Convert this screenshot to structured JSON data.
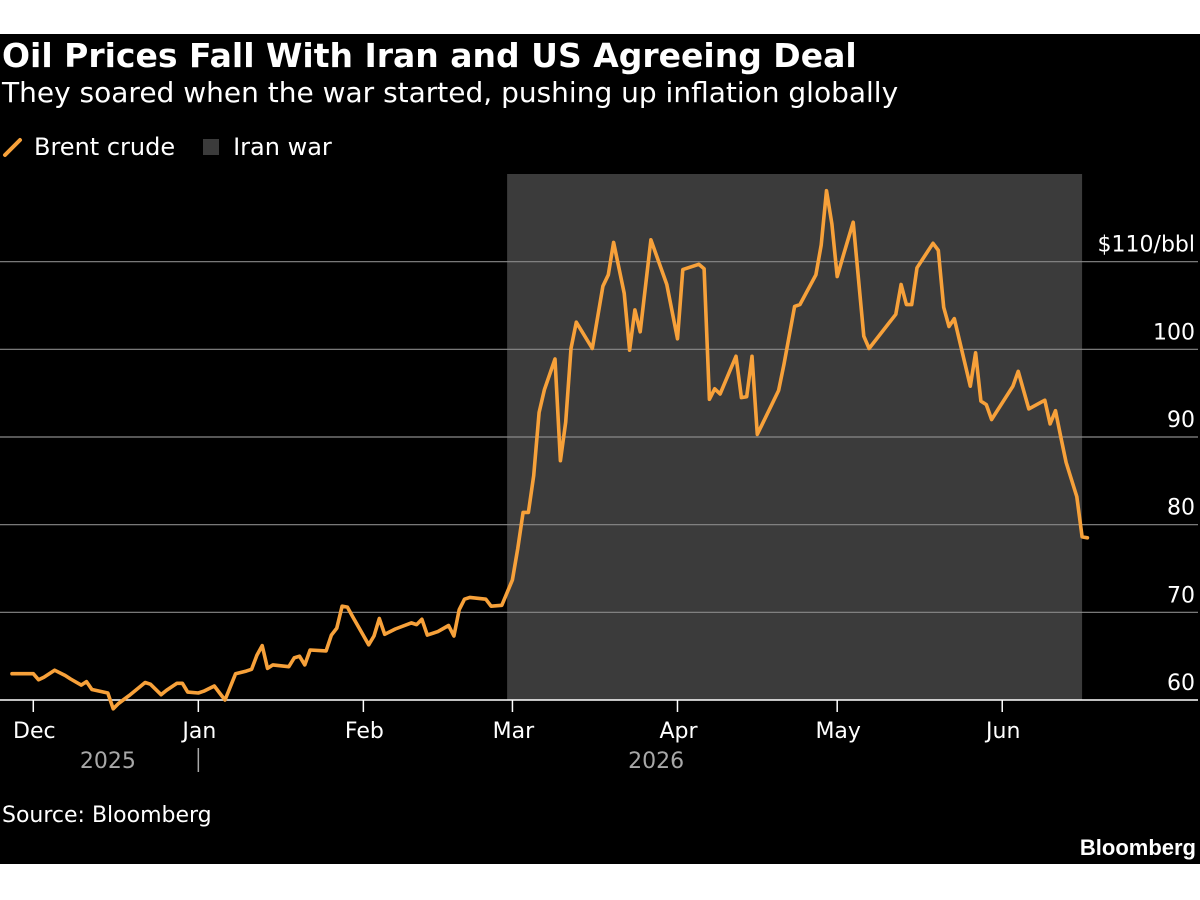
{
  "header": {
    "title": "Oil Prices Fall With Iran and US Agreeing Deal",
    "subtitle": "They soared when the war started, pushing up inflation globally"
  },
  "legend": {
    "series_label": "Brent crude",
    "shade_label": "Iran war"
  },
  "footer": {
    "source": "Source: Bloomberg",
    "brand": "Bloomberg"
  },
  "colors": {
    "background": "#000000",
    "line": "#f7a13a",
    "shade": "#3b3b3b",
    "grid": "#8a8a8a",
    "text": "#ffffff",
    "year_text": "#a8a8a8"
  },
  "chart_data": {
    "type": "line",
    "title": "Oil Prices Fall With Iran and US Agreeing Deal",
    "subtitle": "They soared when the war started, pushing up inflation globally",
    "xlabel": "",
    "ylabel": "",
    "xlim": [
      "2025-11-27",
      "2026-06-25"
    ],
    "ylim": [
      60,
      120
    ],
    "yticks": [
      {
        "value": 60,
        "label": "60"
      },
      {
        "value": 70,
        "label": "70"
      },
      {
        "value": 80,
        "label": "80"
      },
      {
        "value": 90,
        "label": "90"
      },
      {
        "value": 100,
        "label": "100"
      },
      {
        "value": 110,
        "label": "$110/bbl"
      }
    ],
    "xticks": [
      {
        "date": "2025-12-01",
        "label": "Dec"
      },
      {
        "date": "2026-01-01",
        "label": "Jan"
      },
      {
        "date": "2026-02-01",
        "label": "Feb"
      },
      {
        "date": "2026-03-01",
        "label": "Mar"
      },
      {
        "date": "2026-04-01",
        "label": "Apr"
      },
      {
        "date": "2026-05-01",
        "label": "May"
      },
      {
        "date": "2026-06-01",
        "label": "Jun"
      }
    ],
    "year_labels": [
      {
        "label": "2025",
        "date": "2025-12-15"
      },
      {
        "label": "2026",
        "date": "2026-03-28"
      }
    ],
    "grid": true,
    "legend_position": "top-left",
    "shaded_region": {
      "label": "Iran war",
      "start": "2026-02-28",
      "end": "2026-06-16"
    },
    "series": [
      {
        "name": "Brent crude",
        "points": [
          [
            "2025-11-27",
            63.0
          ],
          [
            "2025-11-29",
            63.0
          ],
          [
            "2025-12-01",
            63.0
          ],
          [
            "2025-12-02",
            62.3
          ],
          [
            "2025-12-03",
            62.6
          ],
          [
            "2025-12-05",
            63.4
          ],
          [
            "2025-12-07",
            62.8
          ],
          [
            "2025-12-08",
            62.4
          ],
          [
            "2025-12-10",
            61.7
          ],
          [
            "2025-12-11",
            62.1
          ],
          [
            "2025-12-12",
            61.2
          ],
          [
            "2025-12-15",
            60.8
          ],
          [
            "2025-12-16",
            59.0
          ],
          [
            "2025-12-17",
            59.6
          ],
          [
            "2025-12-19",
            60.5
          ],
          [
            "2025-12-21",
            61.5
          ],
          [
            "2025-12-22",
            62.0
          ],
          [
            "2025-12-23",
            61.8
          ],
          [
            "2025-12-25",
            60.6
          ],
          [
            "2025-12-26",
            61.1
          ],
          [
            "2025-12-28",
            61.9
          ],
          [
            "2025-12-29",
            61.9
          ],
          [
            "2025-12-30",
            60.9
          ],
          [
            "2026-01-01",
            60.8
          ],
          [
            "2026-01-02",
            61.0
          ],
          [
            "2026-01-04",
            61.6
          ],
          [
            "2026-01-05",
            60.8
          ],
          [
            "2026-01-06",
            60.0
          ],
          [
            "2026-01-08",
            63.0
          ],
          [
            "2026-01-10",
            63.3
          ],
          [
            "2026-01-11",
            63.5
          ],
          [
            "2026-01-12",
            65.1
          ],
          [
            "2026-01-13",
            66.2
          ],
          [
            "2026-01-14",
            63.6
          ],
          [
            "2026-01-15",
            64.0
          ],
          [
            "2026-01-18",
            63.8
          ],
          [
            "2026-01-19",
            64.8
          ],
          [
            "2026-01-20",
            65.0
          ],
          [
            "2026-01-21",
            64.0
          ],
          [
            "2026-01-22",
            65.7
          ],
          [
            "2026-01-25",
            65.6
          ],
          [
            "2026-01-26",
            67.4
          ],
          [
            "2026-01-27",
            68.2
          ],
          [
            "2026-01-28",
            70.7
          ],
          [
            "2026-01-29",
            70.6
          ],
          [
            "2026-01-30",
            69.5
          ],
          [
            "2026-02-02",
            66.3
          ],
          [
            "2026-02-03",
            67.3
          ],
          [
            "2026-02-04",
            69.3
          ],
          [
            "2026-02-05",
            67.5
          ],
          [
            "2026-02-07",
            68.1
          ],
          [
            "2026-02-10",
            68.8
          ],
          [
            "2026-02-11",
            68.6
          ],
          [
            "2026-02-12",
            69.2
          ],
          [
            "2026-02-13",
            67.4
          ],
          [
            "2026-02-15",
            67.8
          ],
          [
            "2026-02-17",
            68.5
          ],
          [
            "2026-02-18",
            67.3
          ],
          [
            "2026-02-19",
            70.3
          ],
          [
            "2026-02-20",
            71.5
          ],
          [
            "2026-02-21",
            71.7
          ],
          [
            "2026-02-24",
            71.5
          ],
          [
            "2026-02-25",
            70.7
          ],
          [
            "2026-02-27",
            70.8
          ],
          [
            "2026-03-01",
            73.7
          ],
          [
            "2026-03-02",
            77.3
          ],
          [
            "2026-03-03",
            81.4
          ],
          [
            "2026-03-04",
            81.4
          ],
          [
            "2026-03-05",
            85.6
          ],
          [
            "2026-03-06",
            92.8
          ],
          [
            "2026-03-07",
            95.4
          ],
          [
            "2026-03-09",
            98.9
          ],
          [
            "2026-03-10",
            87.3
          ],
          [
            "2026-03-11",
            91.7
          ],
          [
            "2026-03-12",
            100.1
          ],
          [
            "2026-03-13",
            103.1
          ],
          [
            "2026-03-16",
            100.1
          ],
          [
            "2026-03-18",
            107.2
          ],
          [
            "2026-03-19",
            108.5
          ],
          [
            "2026-03-20",
            112.2
          ],
          [
            "2026-03-22",
            106.4
          ],
          [
            "2026-03-23",
            99.9
          ],
          [
            "2026-03-24",
            104.5
          ],
          [
            "2026-03-25",
            102.0
          ],
          [
            "2026-03-27",
            112.5
          ],
          [
            "2026-03-30",
            107.4
          ],
          [
            "2026-04-01",
            101.2
          ],
          [
            "2026-04-02",
            109.1
          ],
          [
            "2026-04-05",
            109.7
          ],
          [
            "2026-04-06",
            109.2
          ],
          [
            "2026-04-07",
            94.3
          ],
          [
            "2026-04-08",
            95.5
          ],
          [
            "2026-04-09",
            94.9
          ],
          [
            "2026-04-12",
            99.2
          ],
          [
            "2026-04-13",
            94.5
          ],
          [
            "2026-04-14",
            94.6
          ],
          [
            "2026-04-15",
            99.2
          ],
          [
            "2026-04-16",
            90.3
          ],
          [
            "2026-04-20",
            95.3
          ],
          [
            "2026-04-21",
            98.3
          ],
          [
            "2026-04-23",
            104.9
          ],
          [
            "2026-04-24",
            105.1
          ],
          [
            "2026-04-27",
            108.5
          ],
          [
            "2026-04-28",
            111.9
          ],
          [
            "2026-04-29",
            118.1
          ],
          [
            "2026-04-30",
            114.3
          ],
          [
            "2026-05-01",
            108.3
          ],
          [
            "2026-05-02",
            110.4
          ],
          [
            "2026-05-04",
            114.5
          ],
          [
            "2026-05-06",
            101.5
          ],
          [
            "2026-05-07",
            100.1
          ],
          [
            "2026-05-12",
            104.0
          ],
          [
            "2026-05-13",
            107.4
          ],
          [
            "2026-05-14",
            105.1
          ],
          [
            "2026-05-15",
            105.1
          ],
          [
            "2026-05-16",
            109.3
          ],
          [
            "2026-05-19",
            112.1
          ],
          [
            "2026-05-20",
            111.3
          ],
          [
            "2026-05-21",
            104.8
          ],
          [
            "2026-05-22",
            102.6
          ],
          [
            "2026-05-23",
            103.5
          ],
          [
            "2026-05-26",
            95.8
          ],
          [
            "2026-05-27",
            99.6
          ],
          [
            "2026-05-28",
            94.1
          ],
          [
            "2026-05-29",
            93.7
          ],
          [
            "2026-05-30",
            92.0
          ],
          [
            "2026-06-03",
            95.8
          ],
          [
            "2026-06-04",
            97.5
          ],
          [
            "2026-06-06",
            93.2
          ],
          [
            "2026-06-09",
            94.2
          ],
          [
            "2026-06-10",
            91.5
          ],
          [
            "2026-06-11",
            93.0
          ],
          [
            "2026-06-12",
            90.0
          ],
          [
            "2026-06-13",
            87.1
          ],
          [
            "2026-06-15",
            83.2
          ],
          [
            "2026-06-16",
            78.6
          ],
          [
            "2026-06-17",
            78.5
          ]
        ]
      }
    ]
  }
}
